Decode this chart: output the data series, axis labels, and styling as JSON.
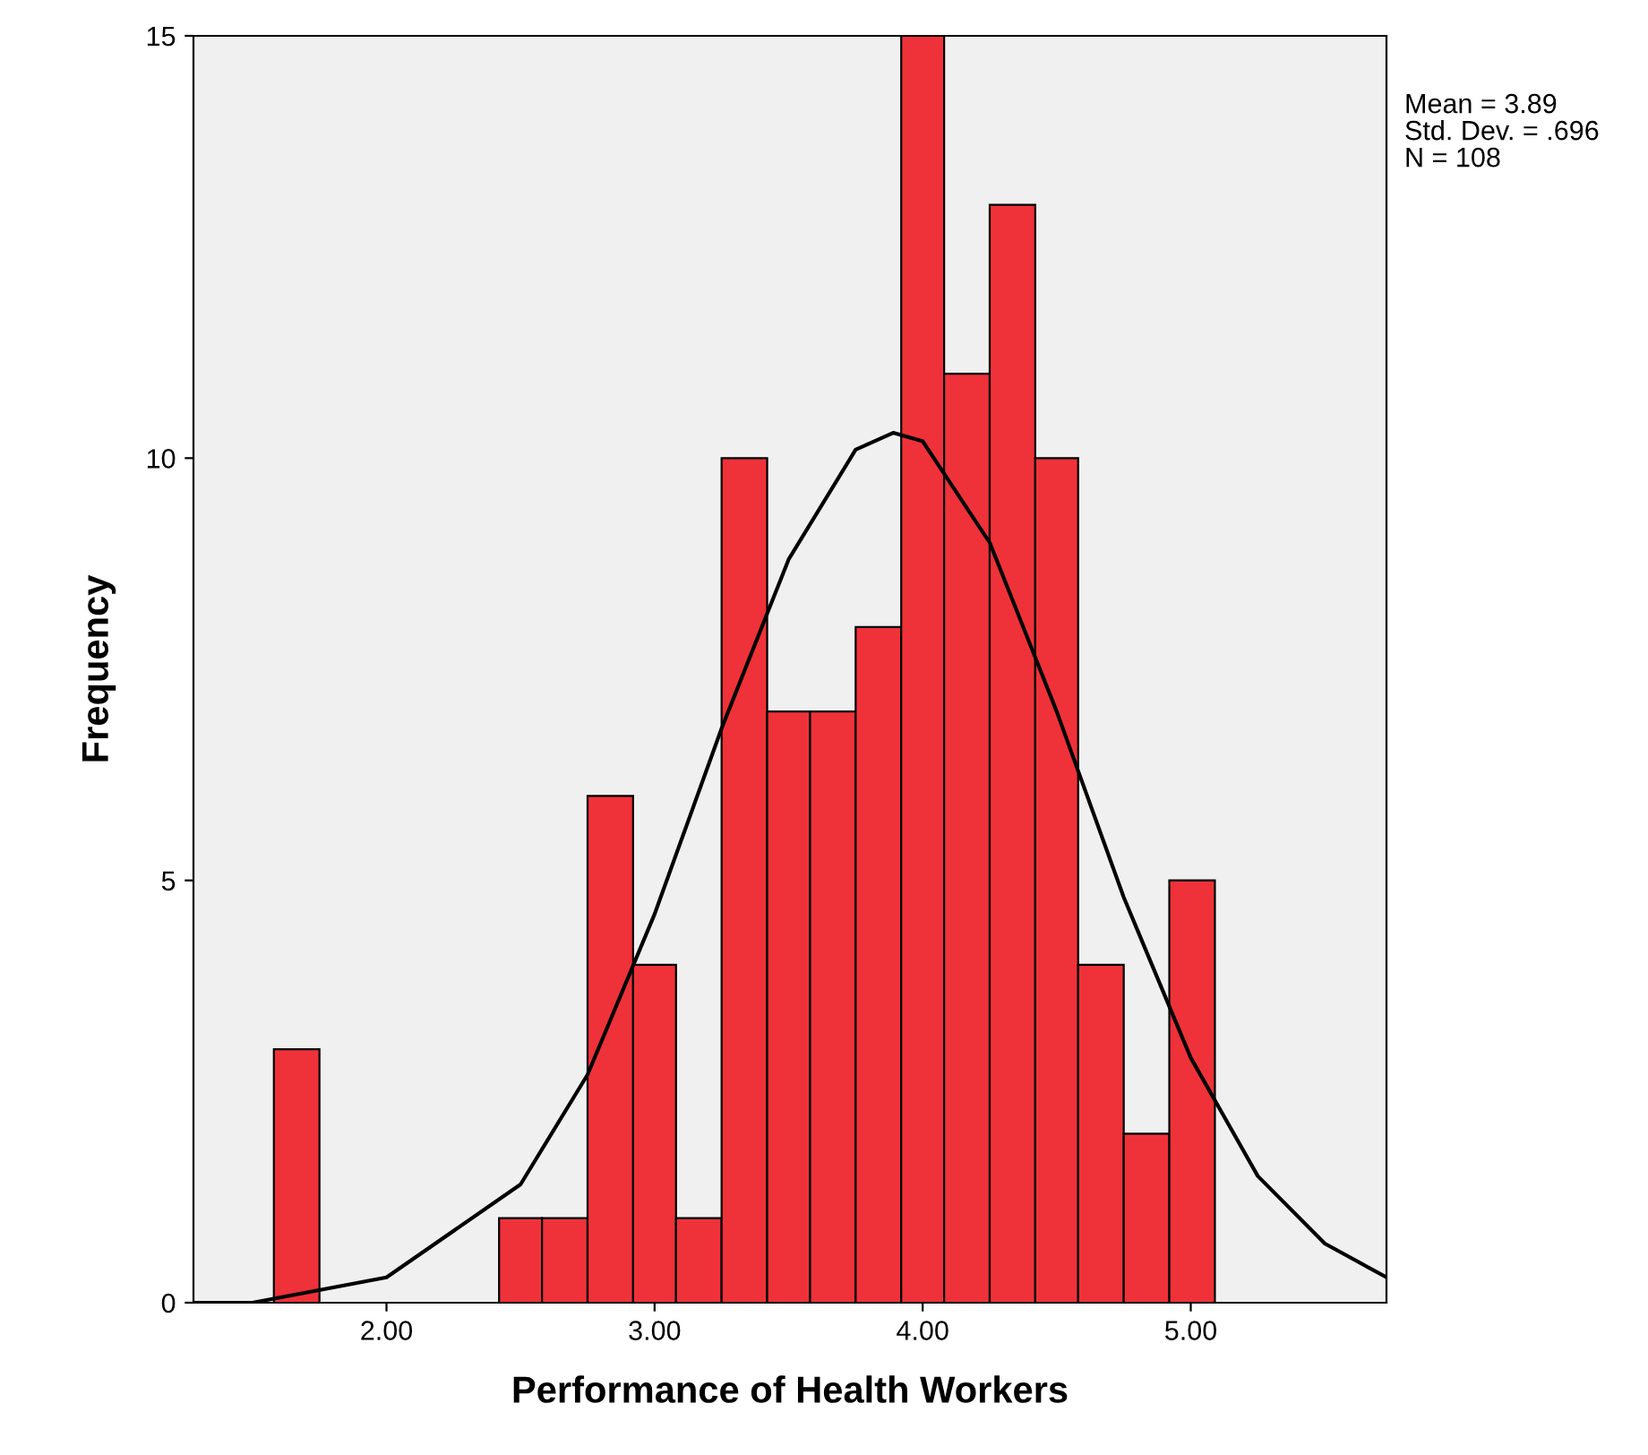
{
  "chart_data": {
    "type": "histogram",
    "xlabel": "Performance of Health Workers",
    "ylabel": "Frequency",
    "series": [
      {
        "color": "#ef3239",
        "bins": [
          1.58,
          1.75
        ],
        "values": [
          3
        ]
      },
      {
        "color": "#ef3239",
        "bins": [
          2.42,
          2.58,
          2.75,
          2.92,
          3.08,
          3.25,
          3.42,
          3.58,
          3.75,
          3.92,
          4.08,
          4.25,
          4.42,
          4.58,
          4.75,
          4.92,
          5.09
        ],
        "values": [
          1,
          1,
          6,
          4,
          1,
          10,
          7,
          7,
          8,
          15,
          11,
          13,
          10,
          4,
          2,
          5
        ]
      },
      {
        "type": "line",
        "color": "#000000",
        "x": [
          1.28,
          1.5,
          2.0,
          2.5,
          2.75,
          3.0,
          3.25,
          3.5,
          3.75,
          3.89,
          4.0,
          4.25,
          4.5,
          4.75,
          5.0,
          5.25,
          5.5,
          5.73
        ],
        "values": [
          0.0,
          0.0,
          0.3,
          1.4,
          2.7,
          4.6,
          6.8,
          8.8,
          10.1,
          10.3,
          10.2,
          9.0,
          7.0,
          4.8,
          2.9,
          1.5,
          0.7,
          0.3
        ]
      }
    ],
    "xlim": [
      1.28,
      5.73
    ],
    "ylim": [
      0,
      15
    ],
    "xticks": [
      {
        "value": 2,
        "label": "2.00"
      },
      {
        "value": 3,
        "label": "3.00"
      },
      {
        "value": 4,
        "label": "4.00"
      },
      {
        "value": 5,
        "label": "5.00"
      }
    ],
    "yticks": [
      0,
      5,
      10,
      15
    ],
    "grid": false,
    "legend": false,
    "annotations": [
      "Mean = 3.89",
      "Std. Dev. = .696",
      "N = 108"
    ]
  }
}
